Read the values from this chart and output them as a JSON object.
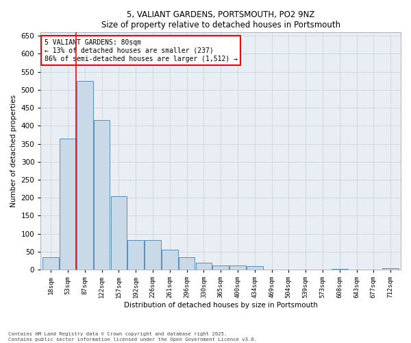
{
  "title1": "5, VALIANT GARDENS, PORTSMOUTH, PO2 9NZ",
  "title2": "Size of property relative to detached houses in Portsmouth",
  "xlabel": "Distribution of detached houses by size in Portsmouth",
  "ylabel": "Number of detached properties",
  "categories": [
    "18sqm",
    "53sqm",
    "87sqm",
    "122sqm",
    "157sqm",
    "192sqm",
    "226sqm",
    "261sqm",
    "296sqm",
    "330sqm",
    "365sqm",
    "400sqm",
    "434sqm",
    "469sqm",
    "504sqm",
    "539sqm",
    "573sqm",
    "608sqm",
    "643sqm",
    "677sqm",
    "712sqm"
  ],
  "values": [
    35,
    365,
    525,
    415,
    205,
    82,
    82,
    55,
    35,
    20,
    12,
    12,
    10,
    0,
    0,
    0,
    0,
    3,
    0,
    0,
    5
  ],
  "bar_color": "#c9d9e8",
  "bar_edge_color": "#5b8db8",
  "vline_x": 1.5,
  "vline_color": "red",
  "annotation_text": "5 VALIANT GARDENS: 80sqm\n← 13% of detached houses are smaller (237)\n86% of semi-detached houses are larger (1,512) →",
  "annotation_box_color": "white",
  "annotation_box_edge_color": "red",
  "footnote1": "Contains HM Land Registry data © Crown copyright and database right 2025.",
  "footnote2": "Contains public sector information licensed under the Open Government Licence v3.0.",
  "ylim": [
    0,
    660
  ],
  "yticks": [
    0,
    50,
    100,
    150,
    200,
    250,
    300,
    350,
    400,
    450,
    500,
    550,
    600,
    650
  ],
  "plot_bg_color": "#e8eef4",
  "fig_bg_color": "#ffffff",
  "grid_color": "#c5d0da"
}
